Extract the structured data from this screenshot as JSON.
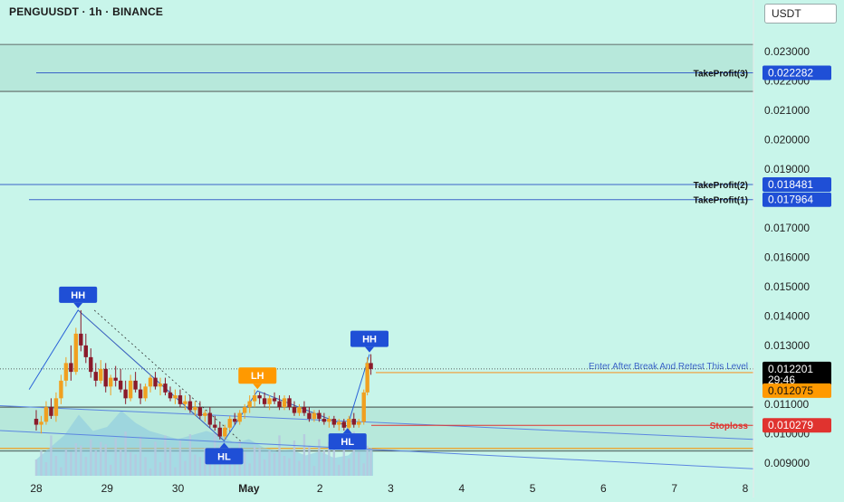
{
  "header": {
    "symbol": "PENGUUSDT · 1h · BINANCE",
    "currency": "USDT"
  },
  "colors": {
    "background": "#c8f5ea",
    "up_candle": "#f0a020",
    "down_candle": "#8a1a2a",
    "takeprofit_line": "#3a63c8",
    "label_blue": "#1f4fd6",
    "stoploss": "#e0332f",
    "entry_label": "#ff9900",
    "current_price_bg": "#000000",
    "trend_line": "#5b86e0",
    "orange_line": "#f0a020"
  },
  "chart_data": {
    "type": "candlestick",
    "ylim": [
      0.0085,
      0.0239
    ],
    "y_ticks": [
      "0.023000",
      "0.022000",
      "0.021000",
      "0.020000",
      "0.019000",
      "0.017000",
      "0.016000",
      "0.015000",
      "0.014000",
      "0.013000",
      "0.011000",
      "0.010000",
      "0.009000"
    ],
    "y_tick_values": [
      0.023,
      0.022,
      0.021,
      0.02,
      0.019,
      0.017,
      0.016,
      0.015,
      0.014,
      0.013,
      0.011,
      0.01,
      0.009
    ],
    "x_ticks": [
      "28",
      "29",
      "30",
      "May",
      "2",
      "3",
      "4",
      "5",
      "6",
      "7",
      "8"
    ],
    "levels": [
      {
        "label": "TakeProfit(3)",
        "price": "0.022282",
        "value": 0.022282
      },
      {
        "label": "TakeProfit(2)",
        "price": "0.018481",
        "value": 0.018481
      },
      {
        "label": "TakeProfit(1)",
        "price": "0.017964",
        "value": 0.017964
      },
      {
        "label": "Stoploss",
        "price": "0.010279",
        "value": 0.010279
      }
    ],
    "entry": {
      "label": "Enter After Break And Retest This Level",
      "price": "0.012075",
      "value": 0.012075
    },
    "last_price": {
      "price": "0.012201",
      "countdown": "29:46",
      "value": 0.012201
    },
    "zones": [
      {
        "from": 0.02165,
        "to": 0.02325
      },
      {
        "from": 0.0094,
        "to": 0.0109
      }
    ],
    "horizontal_lines": [
      0.0094,
      0.0109
    ],
    "pivots": [
      {
        "label": "HH",
        "x": 0.59,
        "y": 0.0142,
        "side": "above"
      },
      {
        "label": "HL",
        "x": 2.65,
        "y": 0.00975,
        "side": "below"
      },
      {
        "label": "LH",
        "x": 3.12,
        "y": 0.01145,
        "side": "above"
      },
      {
        "label": "HL",
        "x": 4.39,
        "y": 0.01025,
        "side": "below"
      },
      {
        "label": "HH",
        "x": 4.7,
        "y": 0.0127,
        "side": "above"
      }
    ],
    "zigzag": [
      [
        -0.1,
        0.0115
      ],
      [
        0.59,
        0.0142
      ],
      [
        2.65,
        0.00975
      ],
      [
        3.12,
        0.01145
      ],
      [
        4.39,
        0.01025
      ],
      [
        4.7,
        0.0127
      ]
    ],
    "candles": [
      [
        0.0,
        0.0105,
        0.0108,
        0.0101,
        0.0103
      ],
      [
        0.07,
        0.0103,
        0.0106,
        0.01,
        0.0104
      ],
      [
        0.14,
        0.0104,
        0.0111,
        0.0103,
        0.0109
      ],
      [
        0.21,
        0.0109,
        0.0112,
        0.0105,
        0.0106
      ],
      [
        0.28,
        0.0106,
        0.0114,
        0.0104,
        0.0112
      ],
      [
        0.35,
        0.0112,
        0.012,
        0.011,
        0.0118
      ],
      [
        0.42,
        0.0118,
        0.0126,
        0.0116,
        0.0124
      ],
      [
        0.49,
        0.0124,
        0.013,
        0.0118,
        0.0121
      ],
      [
        0.56,
        0.0121,
        0.0136,
        0.012,
        0.0134
      ],
      [
        0.63,
        0.0134,
        0.0142,
        0.0128,
        0.013
      ],
      [
        0.7,
        0.013,
        0.0134,
        0.0124,
        0.0126
      ],
      [
        0.77,
        0.0126,
        0.0129,
        0.0119,
        0.0121
      ],
      [
        0.84,
        0.0121,
        0.0124,
        0.0116,
        0.0118
      ],
      [
        0.91,
        0.0118,
        0.0125,
        0.0117,
        0.0122
      ],
      [
        0.98,
        0.0122,
        0.0124,
        0.0114,
        0.0116
      ],
      [
        1.05,
        0.0116,
        0.012,
        0.0113,
        0.0119
      ],
      [
        1.12,
        0.0119,
        0.0123,
        0.0116,
        0.0118
      ],
      [
        1.19,
        0.0118,
        0.0122,
        0.0114,
        0.0115
      ],
      [
        1.26,
        0.0115,
        0.0118,
        0.011,
        0.0112
      ],
      [
        1.33,
        0.0112,
        0.012,
        0.0111,
        0.0118
      ],
      [
        1.4,
        0.0118,
        0.0121,
        0.0114,
        0.0115
      ],
      [
        1.47,
        0.0115,
        0.0117,
        0.011,
        0.0112
      ],
      [
        1.54,
        0.0112,
        0.0117,
        0.0111,
        0.0116
      ],
      [
        1.61,
        0.0116,
        0.012,
        0.0114,
        0.0119
      ],
      [
        1.68,
        0.0119,
        0.0121,
        0.0115,
        0.0116
      ],
      [
        1.75,
        0.0116,
        0.0119,
        0.0113,
        0.0117
      ],
      [
        1.82,
        0.0117,
        0.0119,
        0.0113,
        0.0114
      ],
      [
        1.89,
        0.0114,
        0.0116,
        0.0111,
        0.0112
      ],
      [
        1.96,
        0.0112,
        0.0115,
        0.011,
        0.0113
      ],
      [
        2.03,
        0.0113,
        0.0115,
        0.0109,
        0.011
      ],
      [
        2.1,
        0.011,
        0.0113,
        0.0108,
        0.0111
      ],
      [
        2.17,
        0.0111,
        0.0113,
        0.0107,
        0.0108
      ],
      [
        2.24,
        0.0108,
        0.0111,
        0.0106,
        0.0109
      ],
      [
        2.31,
        0.0109,
        0.0111,
        0.0105,
        0.0106
      ],
      [
        2.38,
        0.0106,
        0.0108,
        0.0104,
        0.0107
      ],
      [
        2.45,
        0.0107,
        0.0109,
        0.0102,
        0.0103
      ],
      [
        2.52,
        0.0103,
        0.0106,
        0.0101,
        0.0102
      ],
      [
        2.59,
        0.0102,
        0.0104,
        0.0098,
        0.0099
      ],
      [
        2.66,
        0.0099,
        0.0103,
        0.0098,
        0.0102
      ],
      [
        2.73,
        0.0102,
        0.0106,
        0.0101,
        0.0105
      ],
      [
        2.8,
        0.0105,
        0.0107,
        0.0103,
        0.0104
      ],
      [
        2.87,
        0.0104,
        0.0108,
        0.0103,
        0.0107
      ],
      [
        2.94,
        0.0107,
        0.011,
        0.0105,
        0.0109
      ],
      [
        3.01,
        0.0109,
        0.0113,
        0.0107,
        0.0111
      ],
      [
        3.08,
        0.0111,
        0.0115,
        0.0109,
        0.0113
      ],
      [
        3.15,
        0.0113,
        0.0114,
        0.011,
        0.0112
      ],
      [
        3.22,
        0.0112,
        0.0114,
        0.0109,
        0.011
      ],
      [
        3.29,
        0.011,
        0.0113,
        0.0108,
        0.0112
      ],
      [
        3.36,
        0.0112,
        0.0114,
        0.011,
        0.0111
      ],
      [
        3.43,
        0.0111,
        0.0113,
        0.0108,
        0.0109
      ],
      [
        3.5,
        0.0109,
        0.0113,
        0.0108,
        0.0112
      ],
      [
        3.57,
        0.0112,
        0.0113,
        0.0108,
        0.0109
      ],
      [
        3.64,
        0.0109,
        0.0111,
        0.0106,
        0.0107
      ],
      [
        3.71,
        0.0107,
        0.011,
        0.0106,
        0.0109
      ],
      [
        3.78,
        0.0109,
        0.0111,
        0.0106,
        0.0107
      ],
      [
        3.85,
        0.0107,
        0.0109,
        0.0104,
        0.0105
      ],
      [
        3.92,
        0.0105,
        0.0108,
        0.0104,
        0.0107
      ],
      [
        3.99,
        0.0107,
        0.0108,
        0.0104,
        0.0105
      ],
      [
        4.06,
        0.0105,
        0.0107,
        0.0103,
        0.0104
      ],
      [
        4.13,
        0.0104,
        0.0106,
        0.0102,
        0.0105
      ],
      [
        4.2,
        0.0105,
        0.0106,
        0.0102,
        0.0103
      ],
      [
        4.27,
        0.0103,
        0.0105,
        0.0101,
        0.0104
      ],
      [
        4.34,
        0.0104,
        0.0105,
        0.0101,
        0.0102
      ],
      [
        4.41,
        0.0102,
        0.0106,
        0.0101,
        0.0105
      ],
      [
        4.48,
        0.0105,
        0.0107,
        0.0102,
        0.0103
      ],
      [
        4.55,
        0.0103,
        0.0105,
        0.0102,
        0.0104
      ],
      [
        4.62,
        0.0104,
        0.0115,
        0.0103,
        0.0114
      ],
      [
        4.67,
        0.0114,
        0.0126,
        0.0113,
        0.0124
      ],
      [
        4.72,
        0.0124,
        0.0127,
        0.012,
        0.0122
      ]
    ],
    "volume_area": [
      [
        0.0,
        0.2
      ],
      [
        0.2,
        0.35
      ],
      [
        0.4,
        0.5
      ],
      [
        0.6,
        0.75
      ],
      [
        0.8,
        0.55
      ],
      [
        1.0,
        0.6
      ],
      [
        1.2,
        0.8
      ],
      [
        1.4,
        0.65
      ],
      [
        1.6,
        0.55
      ],
      [
        1.8,
        0.5
      ],
      [
        2.0,
        0.45
      ],
      [
        2.2,
        0.5
      ],
      [
        2.4,
        0.55
      ],
      [
        2.6,
        0.5
      ],
      [
        2.8,
        0.4
      ],
      [
        3.0,
        0.45
      ],
      [
        3.2,
        0.35
      ],
      [
        3.4,
        0.3
      ],
      [
        3.6,
        0.32
      ],
      [
        3.8,
        0.25
      ],
      [
        4.0,
        0.3
      ],
      [
        4.2,
        0.22
      ],
      [
        4.4,
        0.25
      ],
      [
        4.6,
        0.4
      ],
      [
        4.75,
        0.3
      ]
    ]
  }
}
